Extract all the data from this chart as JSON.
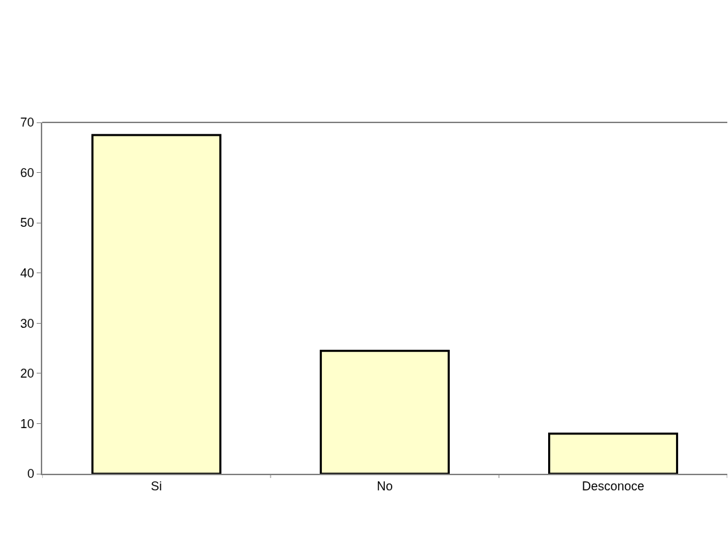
{
  "chart_data": {
    "type": "bar",
    "categories": [
      "Si",
      "No",
      "Desconoce"
    ],
    "values": [
      67.5,
      24.5,
      8
    ],
    "color": "#ffffcc",
    "ylim": [
      0,
      70
    ],
    "yticks": [
      0,
      10,
      20,
      30,
      40,
      50,
      60,
      70
    ]
  }
}
